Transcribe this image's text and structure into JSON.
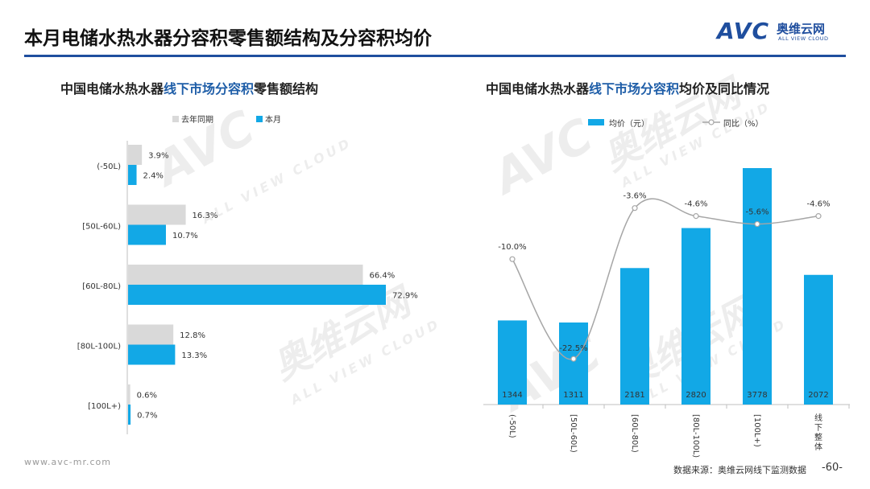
{
  "header": {
    "title": "本月电储水热水器分容积零售额结构及分容积均价",
    "logo_mark": "AVC",
    "logo_cn": "奥维云网",
    "logo_en": "ALL VIEW CLOUD"
  },
  "colors": {
    "accent": "#1f4e9e",
    "current": "#12a8e6",
    "previous": "#d9d9d9",
    "line": "#a6a6a6"
  },
  "left_title": {
    "pre": "中国电储水热水器",
    "hl": "线下市场分容积",
    "post": "零售额结构"
  },
  "right_title": {
    "pre": "中国电储水热水器",
    "hl": "线下市场分容积",
    "post": "均价及同比情况"
  },
  "chart_data": [
    {
      "type": "bar",
      "orientation": "horizontal",
      "categories": [
        "(-50L)",
        "[50L-60L)",
        "[60L-80L)",
        "[80L-100L)",
        "[100L+)"
      ],
      "series": [
        {
          "name": "去年同期",
          "values": [
            3.9,
            16.3,
            66.4,
            12.8,
            0.6
          ],
          "labels": [
            "3.9%",
            "16.3%",
            "66.4%",
            "12.8%",
            "0.6%"
          ]
        },
        {
          "name": "本月",
          "values": [
            2.4,
            10.7,
            72.9,
            13.3,
            0.7
          ],
          "labels": [
            "2.4%",
            "10.7%",
            "72.9%",
            "13.3%",
            "0.7%"
          ]
        }
      ],
      "legend": "top"
    },
    {
      "type": "bar",
      "categories": [
        "(-50L)",
        "[50L-60L)",
        "[60L-80L)",
        "[80L-100L)",
        "[100L+)",
        "线下整体"
      ],
      "series": [
        {
          "name": "均价（元）",
          "type": "bar",
          "values": [
            1344,
            1311,
            2181,
            2820,
            3778,
            2072
          ]
        },
        {
          "name": "同比（%）",
          "type": "line",
          "values": [
            -10.0,
            -22.5,
            -3.6,
            -4.6,
            -5.6,
            -4.6
          ],
          "labels": [
            "-10.0%",
            "-22.5%",
            "-3.6%",
            "-4.6%",
            "-5.6%",
            "-4.6%"
          ]
        }
      ],
      "legend": "top"
    }
  ],
  "watermark": {
    "mark": "AVC",
    "cn": "奥维云网",
    "en": "ALL VIEW CLOUD"
  },
  "footer": {
    "url": "www.avc-mr.com",
    "source": "数据来源：奥维云网线下监测数据",
    "page": "-60-"
  }
}
